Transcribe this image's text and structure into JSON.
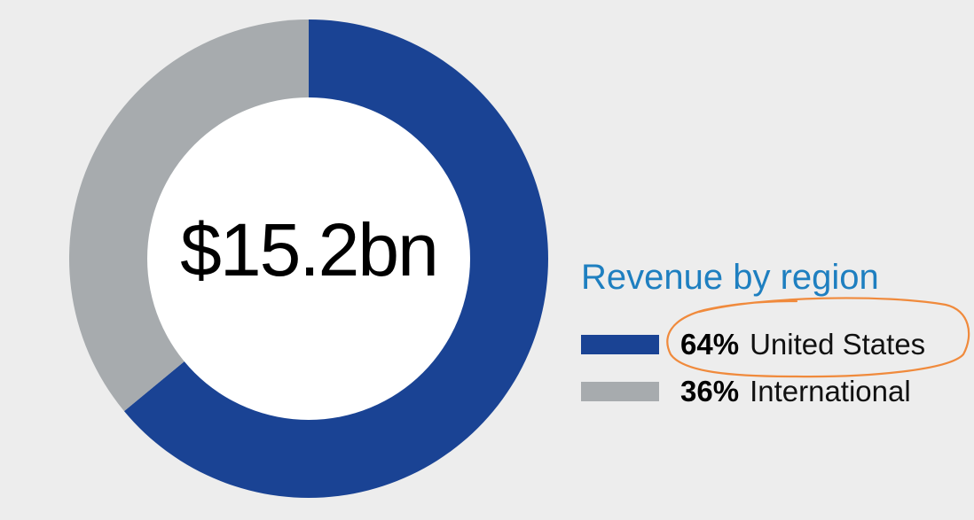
{
  "chart_data": {
    "type": "pie",
    "title": "Revenue by region",
    "center_label": "$15.2bn",
    "categories": [
      "United States",
      "International"
    ],
    "values": [
      64,
      36
    ],
    "value_labels": [
      "64%",
      "36%"
    ],
    "colors": [
      "#1a4394",
      "#a7abae"
    ],
    "legend_position": "right",
    "highlight": "United States"
  },
  "colors": {
    "background": "#ededed",
    "title": "#1e7fc0",
    "annotation": "#f08a3c",
    "hole": "#ffffff"
  }
}
